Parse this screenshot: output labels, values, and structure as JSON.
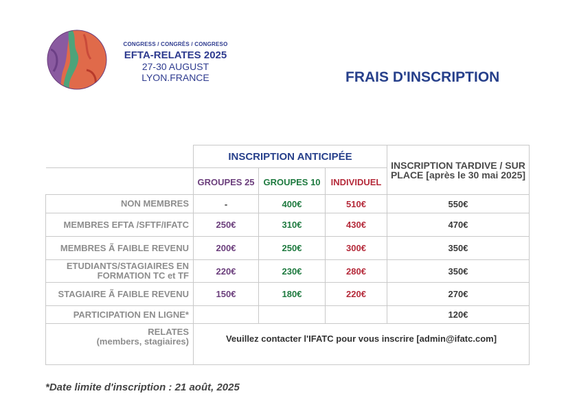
{
  "header": {
    "langs": "CONGRESS / CONGRÈS / CONGRESO",
    "event": "EFTA-RELATES 2025",
    "dates": "27-30 AUGUST",
    "city": "LYON.FRANCE",
    "title": "FRAIS D'INSCRIPTION"
  },
  "colors": {
    "navy": "#27408b",
    "purple": "#6b3e7c",
    "green": "#1e7a3f",
    "red": "#b52a3a",
    "label_gray": "#8d8d8d"
  },
  "table": {
    "early_header": "INSCRIPTION ANTICIPÉE",
    "late_header": "INSCRIPTION TARDIVE / SUR PLACE [après le 30 mai 2025]",
    "subheaders": [
      "GROUPES 25",
      "GROUPES 10",
      "INDIVIDUEL"
    ],
    "rows": [
      {
        "label": "NON MEMBRES",
        "g25": "-",
        "g10": "400€",
        "ind": "510€",
        "late": "550€"
      },
      {
        "label": "MEMBRES EFTA /SFTF/IFATC",
        "g25": "250€",
        "g10": "310€",
        "ind": "430€",
        "late": "470€"
      },
      {
        "label": "MEMBRES Ã FAIBLE REVENU",
        "g25": "200€",
        "g10": "250€",
        "ind": "300€",
        "late": "350€"
      },
      {
        "label": "ETUDIANTS/STAGIAIRES EN FORMATION TC et TF",
        "g25": "220€",
        "g10": "230€",
        "ind": "280€",
        "late": "350€"
      },
      {
        "label": "STAGIAIRE Ã FAIBLE REVENU",
        "g25": "150€",
        "g10": "180€",
        "ind": "220€",
        "late": "270€"
      },
      {
        "label": "PARTICIPATION EN LIGNE*",
        "g25": "",
        "g10": "",
        "ind": "",
        "late": "120€"
      }
    ],
    "relates_label": "RELATES",
    "relates_sub": "(members, stagiaires)",
    "relates_contact": "Veuillez contacter l'IFATC pour vous inscrire [admin@ifatc.com]"
  },
  "footnote": "*Date limite d'inscription : 21 août, 2025"
}
